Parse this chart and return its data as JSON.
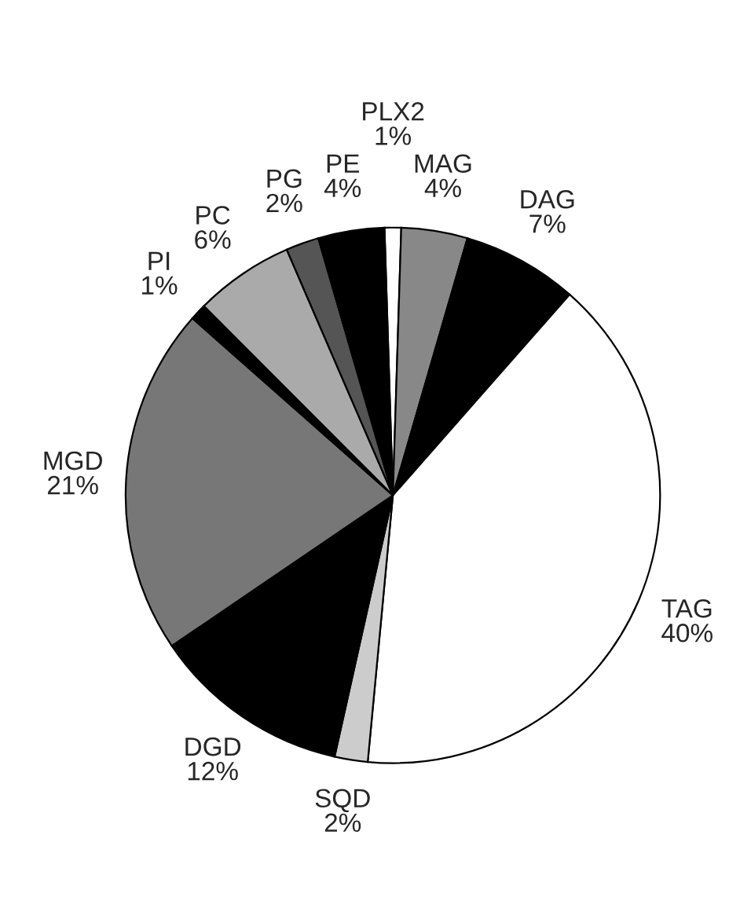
{
  "chart_data": {
    "type": "pie",
    "categories": [
      "PLX2",
      "MAG",
      "DAG",
      "TAG",
      "SQD",
      "DGD",
      "MGD",
      "PI",
      "PC",
      "PG",
      "PE"
    ],
    "values": [
      1,
      4,
      7,
      40,
      2,
      12,
      21,
      1,
      6,
      2,
      4
    ],
    "colors": [
      "#ffffff",
      "#888888",
      "#000000",
      "#ffffff",
      "#cccccc",
      "#000000",
      "#777777",
      "#000000",
      "#aaaaaa",
      "#555555",
      "#000000"
    ],
    "value_labels": [
      "1%",
      "4%",
      "7%",
      "40%",
      "2%",
      "12%",
      "21%",
      "1%",
      "6%",
      "2%",
      "4%"
    ],
    "legend": false
  }
}
